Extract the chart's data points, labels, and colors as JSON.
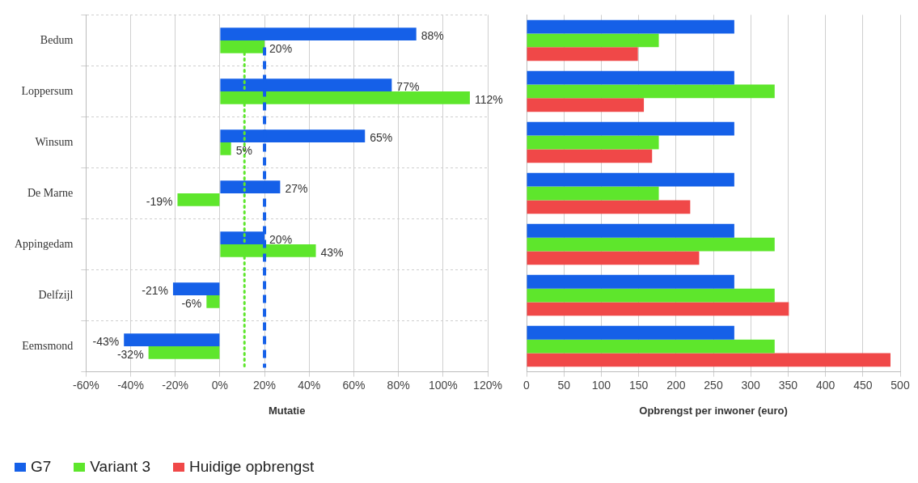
{
  "chart_data": [
    {
      "type": "bar",
      "orientation": "horizontal",
      "xlabel": "Mutatie",
      "categories": [
        "Bedum",
        "Loppersum",
        "Winsum",
        "De Marne",
        "Appingedam",
        "Delfzijl",
        "Eemsmond"
      ],
      "series": [
        {
          "color": "#1560e8",
          "values": [
            88,
            77,
            65,
            27,
            20,
            -21,
            -43
          ],
          "value_labels": [
            "88%",
            "77%",
            "65%",
            "27%",
            "20%",
            "-21%",
            "-43%"
          ]
        },
        {
          "color": "#5ee62c",
          "values": [
            20,
            112,
            5,
            -19,
            43,
            -6,
            -32
          ],
          "value_labels": [
            "20%",
            "112%",
            "5%",
            "-19%",
            "43%",
            "-6%",
            "-32%"
          ]
        }
      ],
      "xlim": [
        -60,
        120
      ],
      "xticks": [
        {
          "value": -60,
          "label": "-60%"
        },
        {
          "value": -40,
          "label": "-40%"
        },
        {
          "value": -20,
          "label": "-20%"
        },
        {
          "value": 0,
          "label": "0%"
        },
        {
          "value": 20,
          "label": "20%"
        },
        {
          "value": 40,
          "label": "40%"
        },
        {
          "value": 60,
          "label": "60%"
        },
        {
          "value": 80,
          "label": "80%"
        },
        {
          "value": 100,
          "label": "100%"
        },
        {
          "value": 120,
          "label": "120%"
        }
      ],
      "ref_lines": [
        {
          "axis": "x",
          "value": 20,
          "color": "#1560e8",
          "line_style": "dashed"
        },
        {
          "axis": "x",
          "value": 11,
          "color": "#5ee62c",
          "line_style": "dotted"
        }
      ],
      "grid": true,
      "legend": false
    },
    {
      "type": "bar",
      "orientation": "horizontal",
      "xlabel": "Opbrengst per inwoner (euro)",
      "categories": [
        null,
        null,
        null,
        null,
        null,
        null,
        null
      ],
      "series": [
        {
          "name": "G7",
          "color": "#1560e8",
          "values": [
            278,
            278,
            278,
            278,
            278,
            278,
            278
          ]
        },
        {
          "name": "Variant 3",
          "color": "#5ee62c",
          "values": [
            177,
            332,
            177,
            177,
            332,
            332,
            332
          ]
        },
        {
          "name": "Huidige opbrengst",
          "color": "#f04848",
          "values": [
            149,
            157,
            168,
            219,
            231,
            351,
            487
          ]
        }
      ],
      "xlim": [
        0,
        500
      ],
      "xticks": [
        0,
        50,
        100,
        150,
        200,
        250,
        300,
        350,
        400,
        450,
        500
      ],
      "grid": "x",
      "legend": "bottom"
    }
  ]
}
